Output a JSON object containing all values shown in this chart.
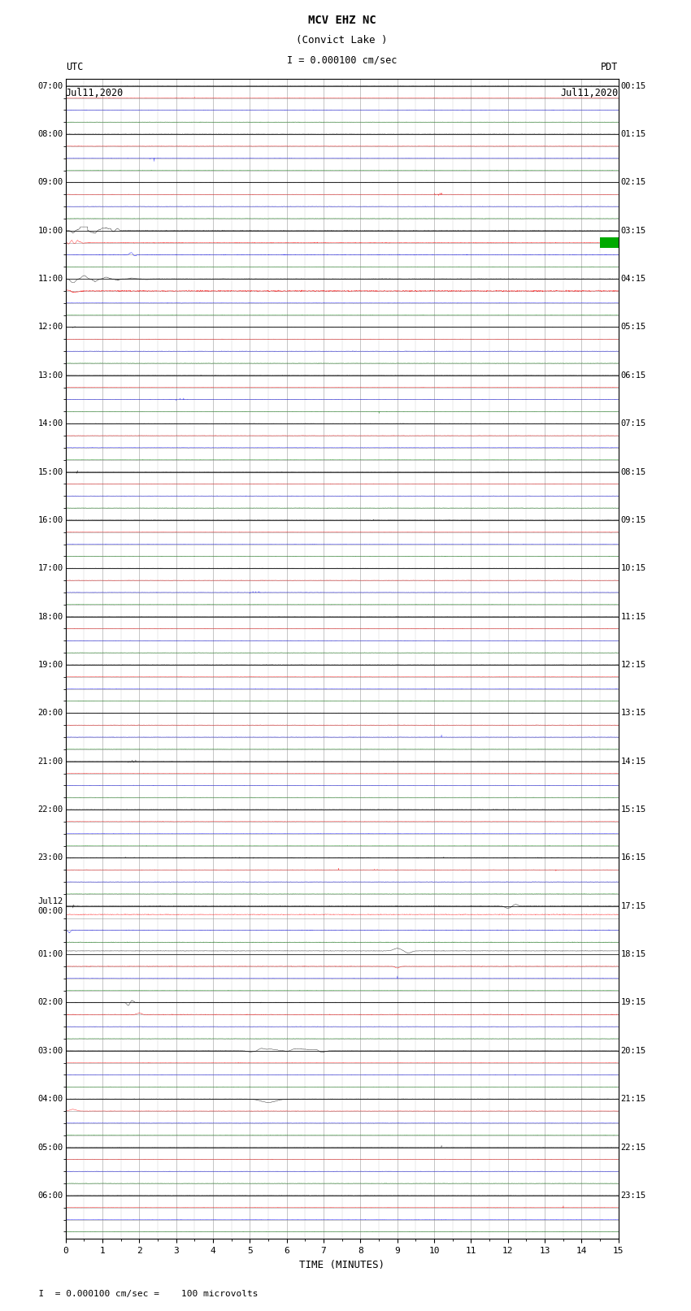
{
  "title_line1": "MCV EHZ NC",
  "title_line2": "(Convict Lake )",
  "title_line3": "I = 0.000100 cm/sec",
  "left_header_line1": "UTC",
  "left_header_line2": "Jul11,2020",
  "right_header_line1": "PDT",
  "right_header_line2": "Jul11,2020",
  "footer_text": "= 0.000100 cm/sec =    100 microvolts",
  "xlabel": "TIME (MINUTES)",
  "utc_labels": [
    "07:00",
    "08:00",
    "09:00",
    "10:00",
    "11:00",
    "12:00",
    "13:00",
    "14:00",
    "15:00",
    "16:00",
    "17:00",
    "18:00",
    "19:00",
    "20:00",
    "21:00",
    "22:00",
    "23:00",
    "Jul12\n00:00",
    "01:00",
    "02:00",
    "03:00",
    "04:00",
    "05:00",
    "06:00"
  ],
  "pdt_labels": [
    "00:15",
    "01:15",
    "02:15",
    "03:15",
    "04:15",
    "05:15",
    "06:15",
    "07:15",
    "08:15",
    "09:15",
    "10:15",
    "11:15",
    "12:15",
    "13:15",
    "14:15",
    "15:15",
    "16:15",
    "17:15",
    "18:15",
    "19:15",
    "20:15",
    "21:15",
    "22:15",
    "23:15"
  ],
  "n_hours": 24,
  "rows_per_hour": 4,
  "n_minutes": 15,
  "bg_color": "#ffffff",
  "trace_color_cycle": [
    "#000000",
    "#ff0000",
    "#0000ff",
    "#008000"
  ],
  "grid_color": "#999999",
  "amplitude_scale": 0.35,
  "noise_amplitude": 0.025
}
